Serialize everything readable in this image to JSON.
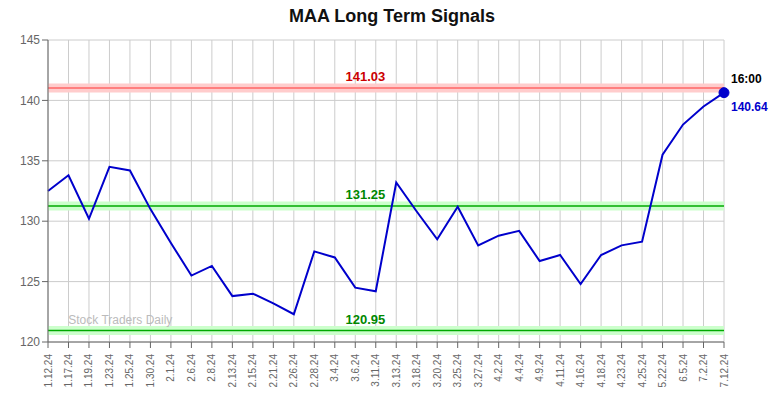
{
  "chart_data": {
    "type": "line",
    "title": "MAA Long Term Signals",
    "categories": [
      "1.12.24",
      "1.17.24",
      "1.19.24",
      "1.23.24",
      "1.25.24",
      "1.30.24",
      "2.1.24",
      "2.6.24",
      "2.8.24",
      "2.13.24",
      "2.15.24",
      "2.21.24",
      "2.26.24",
      "2.28.24",
      "3.4.24",
      "3.6.24",
      "3.11.24",
      "3.13.24",
      "3.18.24",
      "3.20.24",
      "3.25.24",
      "3.27.24",
      "4.2.24",
      "4.4.24",
      "4.9.24",
      "4.11.24",
      "4.16.24",
      "4.18.24",
      "4.23.24",
      "4.25.24",
      "5.22.24",
      "6.5.24",
      "7.2.24",
      "7.12.24"
    ],
    "values": [
      132.5,
      133.8,
      130.2,
      134.5,
      134.2,
      131.0,
      128.2,
      125.5,
      126.3,
      123.8,
      124.0,
      123.2,
      122.3,
      127.5,
      127.0,
      124.5,
      124.2,
      133.2,
      130.8,
      128.5,
      131.2,
      128.0,
      128.8,
      129.2,
      126.7,
      127.2,
      124.8,
      127.2,
      128.0,
      128.3,
      135.5,
      138.0,
      139.5,
      140.64
    ],
    "color": "#0000cc",
    "ylim": [
      120,
      145
    ],
    "yticks": [
      120,
      125,
      130,
      135,
      140,
      145
    ],
    "grid": true,
    "hlines": [
      {
        "value": 141.03,
        "label": "141.03",
        "color": "#ff6666",
        "band_color": "#ffcccc",
        "label_color": "#cc0000"
      },
      {
        "value": 131.25,
        "label": "131.25",
        "color": "#00aa00",
        "band_color": "#ccffcc",
        "label_color": "#008800"
      },
      {
        "value": 120.95,
        "label": "120.95",
        "color": "#00aa00",
        "band_color": "#ccffcc",
        "label_color": "#008800"
      }
    ],
    "last_point": {
      "marker": "circle",
      "color": "#0000cc",
      "label": "16:00",
      "value_label": "140.64"
    },
    "watermark": "Stock Traders Daily",
    "watermark_color": "#bbbbbb"
  }
}
